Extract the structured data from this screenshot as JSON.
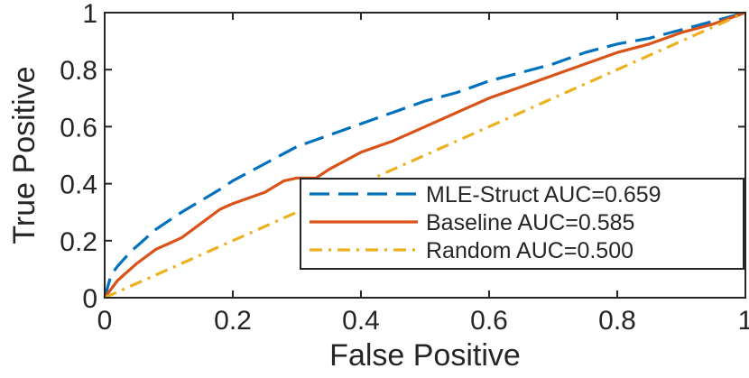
{
  "chart_data": {
    "type": "line",
    "title": "",
    "xlabel": "False Positive",
    "ylabel": "True Positive",
    "xlim": [
      0,
      1
    ],
    "ylim": [
      0,
      1
    ],
    "xticks": [
      0,
      0.2,
      0.4,
      0.6,
      0.8,
      1
    ],
    "yticks": [
      0,
      0.2,
      0.4,
      0.6,
      0.8,
      1
    ],
    "xtick_labels": [
      "0",
      "0.2",
      "0.4",
      "0.6",
      "0.8",
      "1"
    ],
    "ytick_labels": [
      "0",
      "0.2",
      "0.4",
      "0.6",
      "0.8",
      "1"
    ],
    "grid": false,
    "legend_position": "bottom-right",
    "series": [
      {
        "name": "MLE-Struct AUC=0.659",
        "color": "#0072BD",
        "style": "dashed",
        "x": [
          0,
          0.01,
          0.02,
          0.04,
          0.06,
          0.08,
          0.1,
          0.12,
          0.15,
          0.18,
          0.2,
          0.25,
          0.3,
          0.35,
          0.4,
          0.45,
          0.5,
          0.55,
          0.6,
          0.65,
          0.7,
          0.75,
          0.8,
          0.85,
          0.9,
          0.95,
          1.0
        ],
        "y": [
          0,
          0.08,
          0.11,
          0.16,
          0.2,
          0.24,
          0.27,
          0.3,
          0.34,
          0.38,
          0.41,
          0.47,
          0.53,
          0.57,
          0.61,
          0.65,
          0.69,
          0.72,
          0.76,
          0.79,
          0.82,
          0.86,
          0.89,
          0.91,
          0.94,
          0.97,
          1.0
        ]
      },
      {
        "name": "Baseline AUC=0.585",
        "color": "#D95319",
        "style": "solid",
        "x": [
          0,
          0.02,
          0.05,
          0.08,
          0.1,
          0.12,
          0.15,
          0.18,
          0.2,
          0.25,
          0.28,
          0.3,
          0.33,
          0.35,
          0.4,
          0.45,
          0.5,
          0.55,
          0.6,
          0.65,
          0.7,
          0.75,
          0.8,
          0.85,
          0.9,
          0.95,
          1.0
        ],
        "y": [
          0,
          0.06,
          0.12,
          0.17,
          0.19,
          0.21,
          0.26,
          0.31,
          0.33,
          0.37,
          0.41,
          0.42,
          0.42,
          0.45,
          0.51,
          0.55,
          0.6,
          0.65,
          0.7,
          0.74,
          0.78,
          0.82,
          0.86,
          0.89,
          0.93,
          0.96,
          1.0
        ]
      },
      {
        "name": "Random AUC=0.500",
        "color": "#EDB120",
        "style": "dashdot",
        "x": [
          0,
          1
        ],
        "y": [
          0,
          1
        ]
      }
    ]
  }
}
